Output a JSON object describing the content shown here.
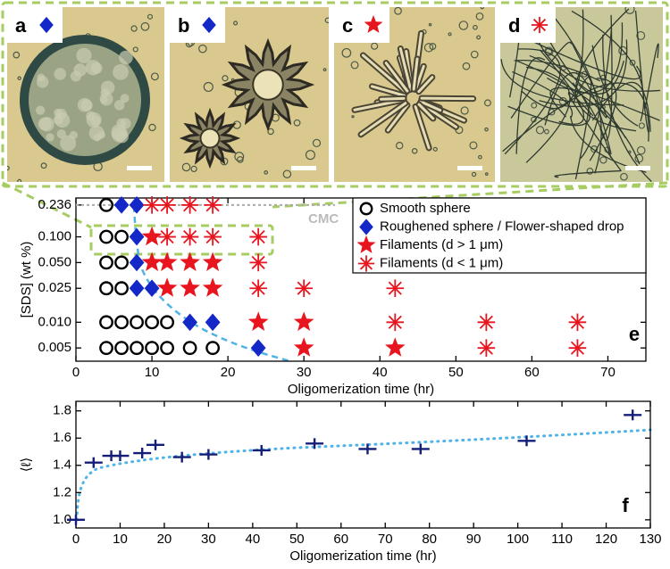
{
  "figure": {
    "panel_labels": [
      "a",
      "b",
      "c",
      "d"
    ]
  },
  "chart_data": [
    {
      "type": "scatter",
      "label": "e",
      "annotation": "CMC",
      "x_label": "Oligomerization time (hr)",
      "y_label": "[SDS] (wt %)",
      "xlim": [
        0,
        75
      ],
      "xticks": [
        0,
        10,
        20,
        30,
        40,
        50,
        60,
        70
      ],
      "ylim": [
        0.0035,
        0.285
      ],
      "y_scale": "log",
      "yticks": [
        {
          "value": 0.236,
          "label": "0.236"
        },
        {
          "value": 0.1,
          "label": "0.100"
        },
        {
          "value": 0.05,
          "label": "0.050"
        },
        {
          "value": 0.025,
          "label": "0.025"
        },
        {
          "value": 0.01,
          "label": "0.010"
        },
        {
          "value": 0.005,
          "label": "0.005"
        }
      ],
      "legend": "upper right",
      "series": [
        {
          "name": "Smooth sphere",
          "color": "#000000",
          "marker": "circle",
          "x": [
            4,
            4,
            6,
            4,
            6,
            4,
            6,
            4,
            6,
            8,
            10,
            12,
            4,
            6,
            8,
            10,
            12,
            15,
            18
          ],
          "values": [
            0.236,
            0.1,
            0.1,
            0.05,
            0.05,
            0.025,
            0.025,
            0.01,
            0.01,
            0.01,
            0.01,
            0.01,
            0.005,
            0.005,
            0.005,
            0.005,
            0.005,
            0.005,
            0.005
          ]
        },
        {
          "name": "Roughened sphere / Flower-shaped drop",
          "color": "#1428c8",
          "marker": "diamond",
          "x": [
            6,
            8,
            8,
            8,
            8,
            10,
            15,
            18,
            24
          ],
          "values": [
            0.236,
            0.236,
            0.1,
            0.05,
            0.025,
            0.025,
            0.01,
            0.01,
            0.005
          ]
        },
        {
          "name": "Filaments (d > 1 μm)",
          "color": "#e8141e",
          "marker": "star",
          "x": [
            10,
            10,
            12,
            15,
            18,
            12,
            15,
            18,
            24,
            30,
            30,
            42
          ],
          "values": [
            0.1,
            0.05,
            0.05,
            0.05,
            0.05,
            0.025,
            0.025,
            0.025,
            0.01,
            0.01,
            0.005,
            0.005
          ]
        },
        {
          "name": "Filaments (d < 1 μm)",
          "color": "#e8141e",
          "marker": "asterisk",
          "x": [
            10,
            12,
            15,
            18,
            12,
            15,
            18,
            24,
            24,
            24,
            30,
            42,
            42,
            54,
            66,
            54,
            66
          ],
          "values": [
            0.236,
            0.236,
            0.236,
            0.236,
            0.1,
            0.1,
            0.1,
            0.1,
            0.05,
            0.025,
            0.025,
            0.025,
            0.01,
            0.01,
            0.01,
            0.005,
            0.005
          ]
        }
      ]
    },
    {
      "type": "scatter",
      "label": "f",
      "x_label": "Oligomerization time (hr)",
      "y_label": "⟨ℓ⟩",
      "xlim": [
        0,
        130
      ],
      "xticks": [
        0,
        10,
        20,
        30,
        40,
        50,
        60,
        70,
        80,
        90,
        100,
        110,
        120,
        130
      ],
      "ylim": [
        0.94,
        1.87
      ],
      "yticks": [
        {
          "value": 1.0,
          "label": "1.0"
        },
        {
          "value": 1.2,
          "label": "1.2"
        },
        {
          "value": 1.4,
          "label": "1.4"
        },
        {
          "value": 1.6,
          "label": "1.6"
        },
        {
          "value": 1.8,
          "label": "1.8"
        }
      ],
      "series": [
        {
          "color": "#141e78",
          "marker": "plus",
          "x": [
            0,
            4,
            8,
            10,
            15,
            18,
            24,
            30,
            42,
            54,
            66,
            78,
            102,
            126
          ],
          "values": [
            1.0,
            1.42,
            1.47,
            1.47,
            1.49,
            1.55,
            1.46,
            1.48,
            1.51,
            1.56,
            1.52,
            1.52,
            1.58,
            1.77
          ]
        }
      ]
    }
  ]
}
